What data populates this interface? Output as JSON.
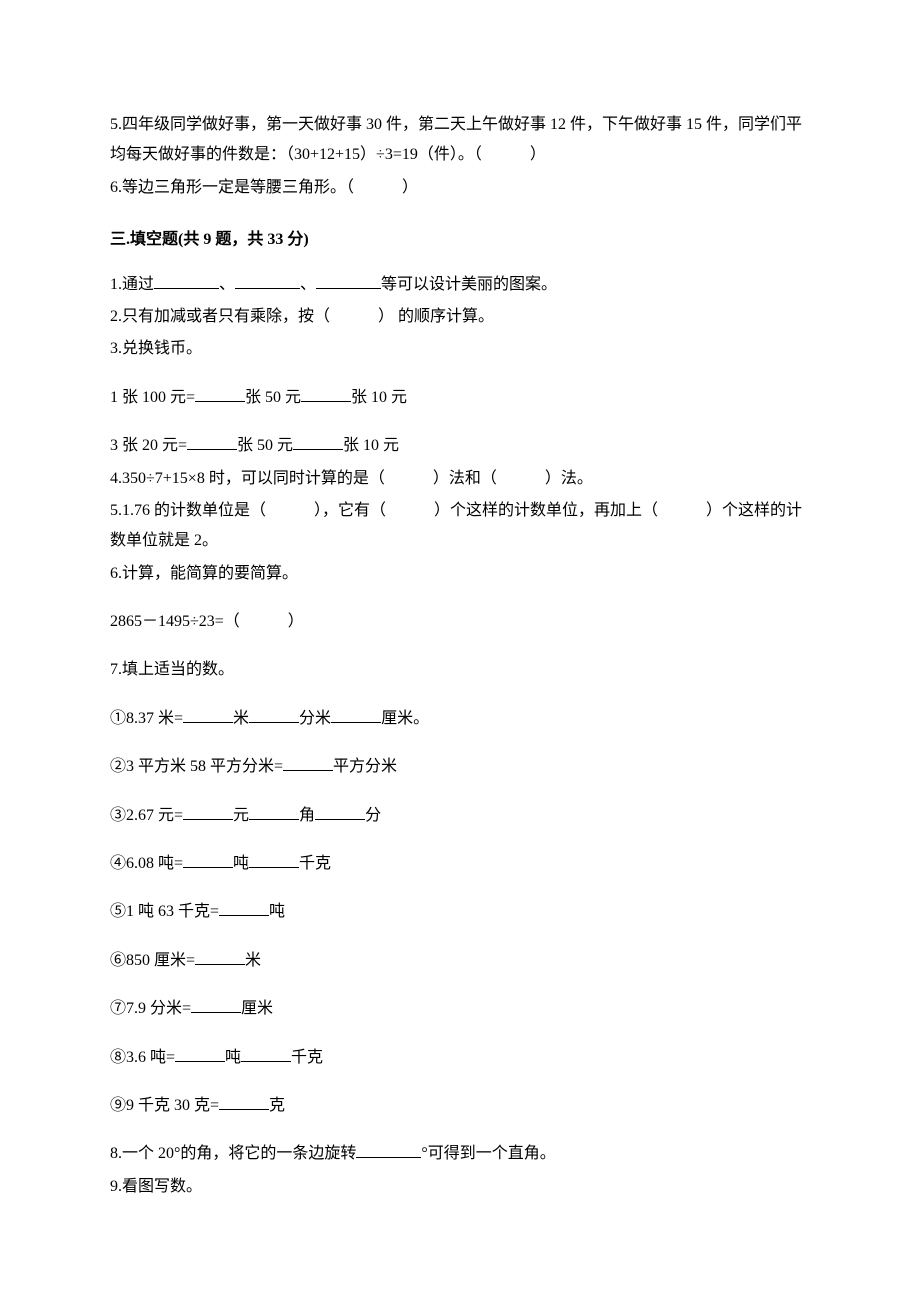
{
  "section2": {
    "q5": "5.四年级同学做好事，第一天做好事 30 件，第二天上午做好事 12 件，下午做好事 15 件，同学们平均每天做好事的件数是：（30+12+15）÷3=19（件）。（　　　）",
    "q6": "6.等边三角形一定是等腰三角形。（　　　）"
  },
  "section3": {
    "title": "三.填空题(共 9 题，共 33 分)",
    "q1_a": "1.通过",
    "q1_b": "、",
    "q1_c": "、",
    "q1_d": "等可以设计美丽的图案。",
    "q2": "2.只有加减或者只有乘除，按（　　　） 的顺序计算。",
    "q3": "3.兑换钱币。",
    "q3_l1a": "1 张 100 元=",
    "q3_l1b": "张 50 元",
    "q3_l1c": "张 10 元",
    "q3_l2a": "3 张 20 元=",
    "q3_l2b": "张 50 元",
    "q3_l2c": "张 10 元",
    "q4": "4.350÷7+15×8 时，可以同时计算的是（　　　）法和（　　　）法。",
    "q5": "5.1.76 的计数单位是（　　　），它有（　　　）个这样的计数单位，再加上（　　　）个这样的计数单位就是 2。",
    "q6": "6.计算，能简算的要简算。",
    "q6_expr": "2865－1495÷23=（　　　）",
    "q7": "7.填上适当的数。",
    "q7_1a": "①8.37 米=",
    "q7_1b": "米",
    "q7_1c": "分米",
    "q7_1d": "厘米。",
    "q7_2a": "②3 平方米 58 平方分米=",
    "q7_2b": "平方分米",
    "q7_3a": "③2.67 元=",
    "q7_3b": "元",
    "q7_3c": "角",
    "q7_3d": "分",
    "q7_4a": "④6.08 吨=",
    "q7_4b": "吨",
    "q7_4c": "千克",
    "q7_5a": "⑤1 吨 63 千克=",
    "q7_5b": "吨",
    "q7_6a": "⑥850 厘米=",
    "q7_6b": "米",
    "q7_7a": "⑦7.9 分米=",
    "q7_7b": "厘米",
    "q7_8a": "⑧3.6 吨=",
    "q7_8b": "吨",
    "q7_8c": "千克",
    "q7_9a": "⑨9 千克 30 克=",
    "q7_9b": "克",
    "q8a": "8.一个 20°的角，将它的一条边旋转",
    "q8b": "°可得到一个直角。",
    "q9": "9.看图写数。"
  }
}
